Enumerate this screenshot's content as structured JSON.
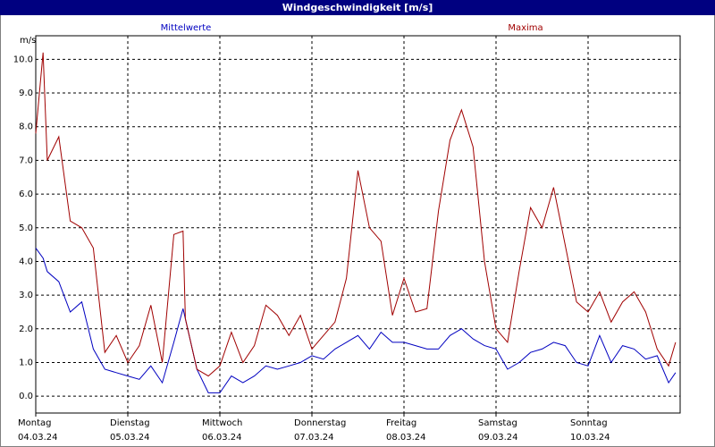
{
  "chart_data": {
    "type": "line",
    "title": "Windgeschwindigkeit [m/s]",
    "y_label": "m/s",
    "x": [
      0,
      0.08,
      0.125,
      0.25,
      0.375,
      0.5,
      0.625,
      0.75,
      0.875,
      1.0,
      1.125,
      1.25,
      1.375,
      1.5,
      1.6,
      1.625,
      1.75,
      1.875,
      2.0,
      2.125,
      2.25,
      2.375,
      2.5,
      2.625,
      2.75,
      2.875,
      3.0,
      3.125,
      3.25,
      3.375,
      3.5,
      3.625,
      3.75,
      3.875,
      4.0,
      4.125,
      4.25,
      4.375,
      4.5,
      4.625,
      4.75,
      4.875,
      5.0,
      5.125,
      5.25,
      5.375,
      5.5,
      5.625,
      5.75,
      5.875,
      6.0,
      6.125,
      6.25,
      6.375,
      6.5,
      6.625,
      6.75,
      6.875,
      6.95
    ],
    "series": [
      {
        "name": "Mittelwerte",
        "color": "#0000c0",
        "values": [
          4.4,
          4.1,
          3.7,
          3.4,
          2.5,
          2.8,
          1.4,
          0.8,
          0.7,
          0.6,
          0.5,
          0.9,
          0.4,
          1.6,
          2.6,
          2.3,
          0.8,
          0.1,
          0.1,
          0.6,
          0.4,
          0.6,
          0.9,
          0.8,
          0.9,
          1.0,
          1.2,
          1.1,
          1.4,
          1.6,
          1.8,
          1.4,
          1.9,
          1.6,
          1.6,
          1.5,
          1.4,
          1.4,
          1.8,
          2.0,
          1.7,
          1.5,
          1.4,
          0.8,
          1.0,
          1.3,
          1.4,
          1.6,
          1.5,
          1.0,
          0.9,
          1.8,
          1.0,
          1.5,
          1.4,
          1.1,
          1.2,
          0.4,
          0.7
        ]
      },
      {
        "name": "Maxima",
        "color": "#a00000",
        "values": [
          7.8,
          10.2,
          7.0,
          7.7,
          5.2,
          5.0,
          4.4,
          1.3,
          1.8,
          1.0,
          1.5,
          2.7,
          1.0,
          4.8,
          4.9,
          2.3,
          0.8,
          0.6,
          0.9,
          1.9,
          1.0,
          1.5,
          2.7,
          2.4,
          1.8,
          2.4,
          1.4,
          1.8,
          2.2,
          3.5,
          6.7,
          5.0,
          4.6,
          2.4,
          3.5,
          2.5,
          2.6,
          5.5,
          7.6,
          8.5,
          7.4,
          4.0,
          2.0,
          1.6,
          3.7,
          5.6,
          5.0,
          6.2,
          4.5,
          2.8,
          2.5,
          3.1,
          2.2,
          2.8,
          3.1,
          2.5,
          1.4,
          0.9,
          1.6
        ]
      }
    ],
    "xlim": [
      0,
      7
    ],
    "xticks": [
      {
        "value": 0,
        "label": "Montag"
      },
      {
        "value": 1,
        "label": "Dienstag"
      },
      {
        "value": 2,
        "label": "Mittwoch"
      },
      {
        "value": 3,
        "label": "Donnerstag"
      },
      {
        "value": 4,
        "label": "Freitag"
      },
      {
        "value": 5,
        "label": "Samstag"
      },
      {
        "value": 6,
        "label": "Sonntag"
      }
    ],
    "xtick_dates": [
      "04.03.24",
      "05.03.24",
      "06.03.24",
      "07.03.24",
      "08.03.24",
      "09.03.24",
      "10.03.24"
    ],
    "ylim": [
      -0.5,
      10.7
    ],
    "yticks": [
      {
        "value": 0,
        "label": "0.0"
      },
      {
        "value": 1,
        "label": "1.0"
      },
      {
        "value": 2,
        "label": "2.0"
      },
      {
        "value": 3,
        "label": "3.0"
      },
      {
        "value": 4,
        "label": "4.0"
      },
      {
        "value": 5,
        "label": "5.0"
      },
      {
        "value": 6,
        "label": "6.0"
      },
      {
        "value": 7,
        "label": "7.0"
      },
      {
        "value": 8,
        "label": "8.0"
      },
      {
        "value": 9,
        "label": "9.0"
      },
      {
        "value": 10,
        "label": "10.0"
      }
    ],
    "grid": true
  }
}
